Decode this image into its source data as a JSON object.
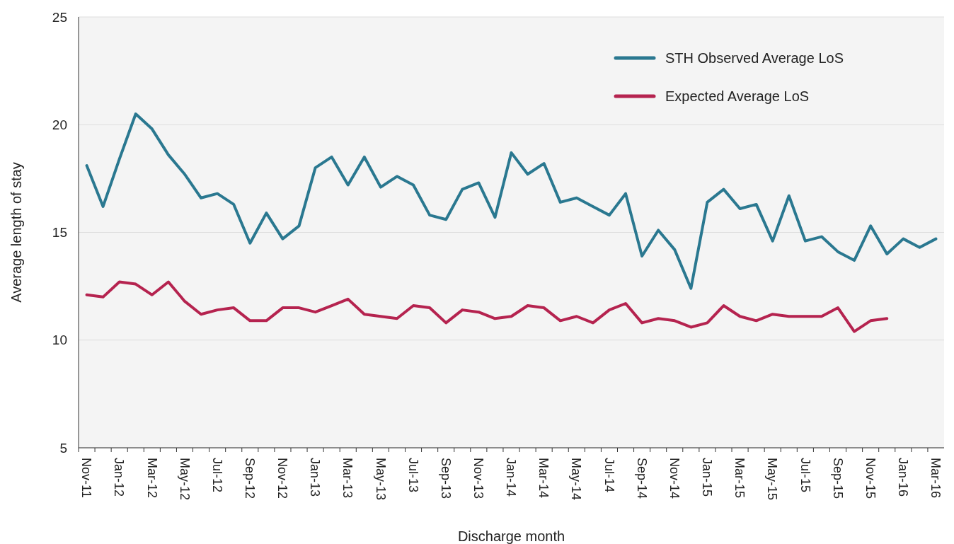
{
  "chart_data": {
    "type": "line",
    "xlabel": "Discharge month",
    "ylabel": "Average length of stay",
    "categories": [
      "Nov-11",
      null,
      "Jan-12",
      null,
      "Mar-12",
      null,
      "May-12",
      null,
      "Jul-12",
      null,
      "Sep-12",
      null,
      "Nov-12",
      null,
      "Jan-13",
      null,
      "Mar-13",
      null,
      "May-13",
      null,
      "Jul-13",
      null,
      "Sep-13",
      null,
      "Nov-13",
      null,
      "Jan-14",
      null,
      "Mar-14",
      null,
      "May-14",
      null,
      "Jul-14",
      null,
      "Sep-14",
      null,
      "Nov-14",
      null,
      "Jan-15",
      null,
      "Mar-15",
      null,
      "May-15",
      null,
      "Jul-15",
      null,
      "Sep-15",
      null,
      "Nov-15",
      null,
      "Jan-16",
      null,
      "Mar-16"
    ],
    "series": [
      {
        "name": "STH Observed Average LoS",
        "color": "#2a7890",
        "values": [
          18.1,
          16.2,
          18.4,
          20.5,
          19.8,
          18.6,
          17.7,
          16.6,
          16.8,
          16.3,
          14.5,
          15.9,
          14.7,
          15.3,
          18.0,
          18.5,
          17.2,
          18.5,
          17.1,
          17.6,
          17.2,
          15.8,
          15.6,
          17.0,
          17.3,
          15.7,
          18.7,
          17.7,
          18.2,
          16.4,
          16.6,
          16.2,
          15.8,
          16.8,
          13.9,
          15.1,
          14.2,
          12.4,
          16.4,
          17.0,
          16.1,
          16.3,
          14.6,
          16.7,
          14.6,
          14.8,
          14.1,
          13.7,
          15.3,
          14.0,
          14.7,
          14.3,
          14.7
        ]
      },
      {
        "name": "Expected Average LoS",
        "color": "#b5234f",
        "values": [
          12.1,
          12.0,
          12.7,
          12.6,
          12.1,
          12.7,
          11.8,
          11.2,
          11.4,
          11.5,
          10.9,
          10.9,
          11.5,
          11.5,
          11.3,
          11.6,
          11.9,
          11.2,
          11.1,
          11.0,
          11.6,
          11.5,
          10.8,
          11.4,
          11.3,
          11.0,
          11.1,
          11.6,
          11.5,
          10.9,
          11.1,
          10.8,
          11.4,
          11.7,
          10.8,
          11.0,
          10.9,
          10.6,
          10.8,
          11.6,
          11.1,
          10.9,
          11.2,
          11.1,
          11.1,
          11.1,
          11.5,
          10.4,
          10.9,
          11.0,
          null,
          null,
          null
        ]
      }
    ],
    "ylim": [
      5,
      25
    ],
    "yticks": [
      5,
      10,
      15,
      20,
      25
    ],
    "grid": "y",
    "legend": "top right",
    "marker": "none",
    "line_style": "solid"
  }
}
